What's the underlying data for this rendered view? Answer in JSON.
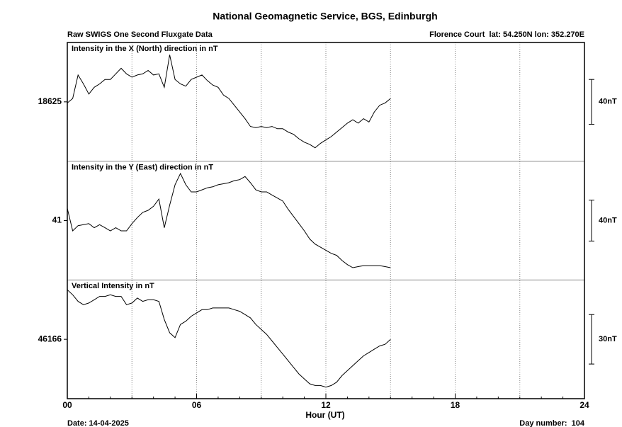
{
  "chart_data": {
    "type": "line",
    "title": "National Geomagnetic Service, BGS, Edinburgh",
    "subtitle": "Raw SWIGS One Second Fluxgate Data",
    "station": "Florence Court  lat: 54.250N lon: 352.270E",
    "date": "Date: 14-04-2025",
    "day_number": "Day number:  104",
    "xlabel": "Hour (UT)",
    "xlim": [
      0,
      24
    ],
    "xticks": [
      {
        "value": 0,
        "label": "00"
      },
      {
        "value": 6,
        "label": "06"
      },
      12,
      18,
      24
    ],
    "grid_step": 3,
    "minor_step": 1,
    "x": [
      0,
      0.25,
      0.5,
      0.75,
      1,
      1.25,
      1.5,
      1.75,
      2,
      2.25,
      2.5,
      2.75,
      3,
      3.25,
      3.5,
      3.75,
      4,
      4.25,
      4.5,
      4.75,
      5,
      5.25,
      5.5,
      5.75,
      6,
      6.25,
      6.5,
      6.75,
      7,
      7.25,
      7.5,
      7.75,
      8,
      8.25,
      8.5,
      8.75,
      9,
      9.25,
      9.5,
      9.75,
      10,
      10.25,
      10.5,
      10.75,
      11,
      11.25,
      11.5,
      11.75,
      12,
      12.25,
      12.5,
      12.75,
      13,
      13.25,
      13.5,
      13.75,
      14,
      14.25,
      14.5,
      14.75,
      15
    ],
    "panels": [
      {
        "title": "Intensity in the X (North) direction in nT",
        "color": "#000000",
        "ylim": [
          18572,
          18678
        ],
        "yticks": [
          18625
        ],
        "scale_bar": {
          "value": 40,
          "label": "40nT"
        },
        "values": [
          18624,
          18628,
          18649,
          18641,
          18632,
          18638,
          18641,
          18645,
          18645,
          18650,
          18655,
          18650,
          18647,
          18649,
          18650,
          18653,
          18649,
          18650,
          18638,
          18667,
          18645,
          18641,
          18639,
          18645,
          18647,
          18649,
          18644,
          18640,
          18638,
          18631,
          18628,
          18622,
          18616,
          18610,
          18603,
          18602,
          18603,
          18602,
          18603,
          18601,
          18601,
          18598,
          18596,
          18592,
          18589,
          18587,
          18584,
          18588,
          18591,
          18594,
          18598,
          18602,
          18606,
          18609,
          18606,
          18610,
          18607,
          18616,
          18622,
          18624,
          18628
        ]
      },
      {
        "title": "Intensity in the Y (East) direction in nT",
        "color": "#000000",
        "ylim": [
          -17,
          99
        ],
        "yticks": [
          41
        ],
        "scale_bar": {
          "value": 40,
          "label": "40nT"
        },
        "values": [
          53,
          31,
          36,
          37,
          38,
          34,
          37,
          34,
          31,
          34,
          31,
          31,
          38,
          44,
          49,
          51,
          55,
          62,
          34,
          56,
          76,
          87,
          76,
          69,
          69,
          71,
          73,
          74,
          76,
          77,
          78,
          80,
          81,
          84,
          78,
          71,
          69,
          69,
          66,
          63,
          60,
          52,
          45,
          38,
          31,
          23,
          18,
          15,
          12,
          9,
          7,
          2,
          -2,
          -5,
          -4,
          -3,
          -3,
          -3,
          -3,
          -4,
          -5
        ]
      },
      {
        "title": "Vertical Intensity in nT",
        "color": "#000000",
        "ylim": [
          46130,
          46202
        ],
        "yticks": [
          46166
        ],
        "scale_bar": {
          "value": 30,
          "label": "30nT"
        },
        "values": [
          46196,
          46193,
          46189,
          46187,
          46188,
          46190,
          46192,
          46192,
          46193,
          46192,
          46192,
          46187,
          46188,
          46191,
          46189,
          46190,
          46190,
          46189,
          46178,
          46170,
          46167,
          46175,
          46177,
          46180,
          46182,
          46184,
          46184,
          46185,
          46185,
          46185,
          46185,
          46184,
          46183,
          46181,
          46179,
          46175,
          46172,
          46169,
          46165,
          46161,
          46157,
          46153,
          46149,
          46145,
          46142,
          46139,
          46138,
          46138,
          46137,
          46138,
          46140,
          46144,
          46147,
          46150,
          46153,
          46156,
          46158,
          46160,
          46162,
          46163,
          46166
        ]
      }
    ]
  }
}
